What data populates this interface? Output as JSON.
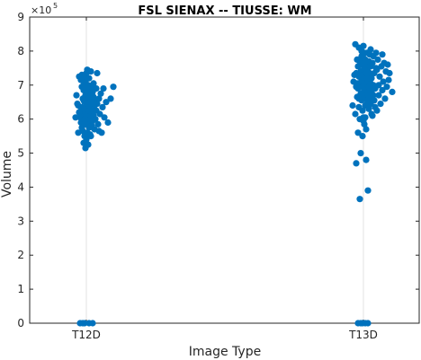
{
  "chart_data": {
    "type": "scatter",
    "title": "FSL SIENAX -- TIUSSE: WM",
    "xlabel": "Image Type",
    "ylabel": "Volume",
    "y_exponent_label": "×10",
    "y_exponent_power": "5",
    "categories": [
      "T12D",
      "T13D"
    ],
    "ylim": [
      0,
      9
    ],
    "yticks": [
      "0",
      "1",
      "2",
      "3",
      "4",
      "5",
      "6",
      "7",
      "8",
      "9"
    ],
    "grid": "vertical at categories",
    "marker_color": "#0072bd",
    "series": [
      {
        "category": "T12D",
        "points": [
          [
            -0.07,
            0
          ],
          [
            -0.04,
            0
          ],
          [
            -0.02,
            0
          ],
          [
            0.03,
            0
          ],
          [
            0.07,
            0
          ],
          [
            -0.1,
            6.45
          ],
          [
            -0.09,
            6.4
          ],
          [
            -0.08,
            7.25
          ],
          [
            -0.07,
            6.05
          ],
          [
            -0.06,
            6.35
          ],
          [
            -0.06,
            5.9
          ],
          [
            -0.05,
            7.3
          ],
          [
            -0.05,
            6.95
          ],
          [
            -0.05,
            5.75
          ],
          [
            -0.04,
            6.1
          ],
          [
            -0.04,
            6.6
          ],
          [
            -0.04,
            5.65
          ],
          [
            -0.03,
            6.85
          ],
          [
            -0.03,
            6.25
          ],
          [
            -0.03,
            7.0
          ],
          [
            -0.03,
            5.3
          ],
          [
            -0.02,
            6.5
          ],
          [
            -0.02,
            6.0
          ],
          [
            -0.02,
            7.25
          ],
          [
            -0.02,
            5.5
          ],
          [
            -0.01,
            6.7
          ],
          [
            -0.01,
            6.2
          ],
          [
            -0.01,
            5.85
          ],
          [
            -0.01,
            7.1
          ],
          [
            0.0,
            6.4
          ],
          [
            0.0,
            6.9
          ],
          [
            0.0,
            5.95
          ],
          [
            0.0,
            6.55
          ],
          [
            0.0,
            7.35
          ],
          [
            0.0,
            5.4
          ],
          [
            0.01,
            6.75
          ],
          [
            0.01,
            6.15
          ],
          [
            0.01,
            6.3
          ],
          [
            0.01,
            7.45
          ],
          [
            0.01,
            5.6
          ],
          [
            0.02,
            6.6
          ],
          [
            0.02,
            6.05
          ],
          [
            0.02,
            7.0
          ],
          [
            0.02,
            5.9
          ],
          [
            0.02,
            6.45
          ],
          [
            0.03,
            6.85
          ],
          [
            0.03,
            6.25
          ],
          [
            0.03,
            5.75
          ],
          [
            0.03,
            7.2
          ],
          [
            0.04,
            6.5
          ],
          [
            0.04,
            6.0
          ],
          [
            0.04,
            6.7
          ],
          [
            0.04,
            5.55
          ],
          [
            0.05,
            6.35
          ],
          [
            0.05,
            6.9
          ],
          [
            0.05,
            6.1
          ],
          [
            0.05,
            7.4
          ],
          [
            0.06,
            6.55
          ],
          [
            0.06,
            5.8
          ],
          [
            0.06,
            6.2
          ],
          [
            0.07,
            6.8
          ],
          [
            0.07,
            6.4
          ],
          [
            0.07,
            5.95
          ],
          [
            0.08,
            6.65
          ],
          [
            0.08,
            6.1
          ],
          [
            0.08,
            7.05
          ],
          [
            0.09,
            6.3
          ],
          [
            0.09,
            5.7
          ],
          [
            0.1,
            6.55
          ],
          [
            0.1,
            6.0
          ],
          [
            0.11,
            6.9
          ],
          [
            0.11,
            6.25
          ],
          [
            0.12,
            6.45
          ],
          [
            0.13,
            5.85
          ],
          [
            0.14,
            6.6
          ],
          [
            0.15,
            6.15
          ],
          [
            0.16,
            6.75
          ],
          [
            0.17,
            5.6
          ],
          [
            0.18,
            6.35
          ],
          [
            0.19,
            6.9
          ],
          [
            0.2,
            6.05
          ],
          [
            0.22,
            6.5
          ],
          [
            0.24,
            5.9
          ],
          [
            0.27,
            6.6
          ],
          [
            0.3,
            6.95
          ],
          [
            -0.12,
            6.05
          ],
          [
            -0.11,
            6.7
          ],
          [
            -0.09,
            5.6
          ],
          [
            -0.08,
            6.2
          ],
          [
            -0.06,
            7.15
          ],
          [
            -0.01,
            5.15
          ],
          [
            0.02,
            5.25
          ],
          [
            0.05,
            5.5
          ],
          [
            0.12,
            7.35
          ],
          [
            0.14,
            5.65
          ],
          [
            -0.03,
            6.55
          ],
          [
            0.01,
            6.85
          ],
          [
            0.04,
            6.25
          ],
          [
            0.06,
            6.95
          ],
          [
            0.09,
            6.45
          ]
        ]
      },
      {
        "category": "T13D",
        "points": [
          [
            -0.06,
            0
          ],
          [
            -0.03,
            0
          ],
          [
            -0.01,
            0
          ],
          [
            0.02,
            0
          ],
          [
            0.05,
            0
          ],
          [
            -0.12,
            6.4
          ],
          [
            -0.09,
            8.2
          ],
          [
            -0.08,
            7.35
          ],
          [
            -0.08,
            4.7
          ],
          [
            -0.07,
            7.05
          ],
          [
            -0.07,
            6.65
          ],
          [
            -0.06,
            7.55
          ],
          [
            -0.06,
            6.9
          ],
          [
            -0.05,
            8.1
          ],
          [
            -0.05,
            7.25
          ],
          [
            -0.05,
            6.35
          ],
          [
            -0.04,
            7.7
          ],
          [
            -0.04,
            7.0
          ],
          [
            -0.04,
            3.65
          ],
          [
            -0.03,
            7.4
          ],
          [
            -0.03,
            6.75
          ],
          [
            -0.03,
            5.0
          ],
          [
            -0.02,
            7.85
          ],
          [
            -0.02,
            7.15
          ],
          [
            -0.02,
            6.55
          ],
          [
            -0.01,
            7.6
          ],
          [
            -0.01,
            6.95
          ],
          [
            -0.01,
            6.25
          ],
          [
            -0.01,
            5.5
          ],
          [
            0.0,
            7.45
          ],
          [
            0.0,
            7.8
          ],
          [
            0.0,
            6.8
          ],
          [
            0.0,
            6.05
          ],
          [
            0.0,
            8.15
          ],
          [
            0.01,
            7.3
          ],
          [
            0.01,
            6.65
          ],
          [
            0.01,
            7.95
          ],
          [
            0.01,
            5.85
          ],
          [
            0.02,
            7.5
          ],
          [
            0.02,
            7.05
          ],
          [
            0.02,
            6.4
          ],
          [
            0.02,
            7.75
          ],
          [
            0.03,
            6.85
          ],
          [
            0.03,
            7.25
          ],
          [
            0.03,
            5.7
          ],
          [
            0.04,
            7.6
          ],
          [
            0.04,
            6.55
          ],
          [
            0.04,
            7.95
          ],
          [
            0.05,
            7.1
          ],
          [
            0.05,
            6.7
          ],
          [
            0.05,
            7.4
          ],
          [
            0.06,
            6.3
          ],
          [
            0.06,
            7.7
          ],
          [
            0.06,
            6.95
          ],
          [
            0.07,
            7.35
          ],
          [
            0.07,
            6.6
          ],
          [
            0.07,
            7.9
          ],
          [
            0.08,
            7.05
          ],
          [
            0.08,
            6.45
          ],
          [
            0.08,
            7.55
          ],
          [
            0.09,
            6.8
          ],
          [
            0.09,
            7.2
          ],
          [
            0.1,
            7.65
          ],
          [
            0.1,
            6.1
          ],
          [
            0.11,
            7.0
          ],
          [
            0.11,
            7.85
          ],
          [
            0.12,
            6.55
          ],
          [
            0.12,
            7.35
          ],
          [
            0.13,
            6.9
          ],
          [
            0.14,
            7.5
          ],
          [
            0.15,
            6.25
          ],
          [
            0.16,
            7.75
          ],
          [
            0.17,
            6.7
          ],
          [
            0.18,
            7.25
          ],
          [
            0.19,
            6.45
          ],
          [
            0.2,
            7.55
          ],
          [
            0.21,
            6.85
          ],
          [
            0.22,
            7.1
          ],
          [
            0.23,
            7.65
          ],
          [
            0.24,
            6.6
          ],
          [
            0.25,
            7.4
          ],
          [
            0.27,
            7.6
          ],
          [
            0.29,
            7.35
          ],
          [
            0.32,
            6.8
          ],
          [
            0.02,
            6.05
          ],
          [
            -0.1,
            7.3
          ],
          [
            -0.09,
            6.15
          ],
          [
            -0.07,
            7.75
          ],
          [
            -0.06,
            5.6
          ],
          [
            -0.04,
            6.0
          ],
          [
            0.03,
            4.8
          ],
          [
            0.05,
            3.9
          ],
          [
            0.06,
            6.4
          ],
          [
            0.09,
            6.15
          ],
          [
            0.13,
            6.35
          ],
          [
            0.14,
            7.95
          ],
          [
            0.17,
            7.0
          ],
          [
            0.21,
            7.9
          ],
          [
            0.26,
            6.95
          ],
          [
            0.28,
            7.15
          ],
          [
            -0.11,
            7.1
          ],
          [
            -0.02,
            8.0
          ],
          [
            0.0,
            5.95
          ],
          [
            0.08,
            8.05
          ],
          [
            0.11,
            6.7
          ],
          [
            -0.08,
            6.95
          ],
          [
            -0.05,
            6.6
          ],
          [
            0.04,
            7.2
          ],
          [
            0.1,
            6.9
          ],
          [
            0.15,
            7.45
          ]
        ]
      }
    ]
  }
}
